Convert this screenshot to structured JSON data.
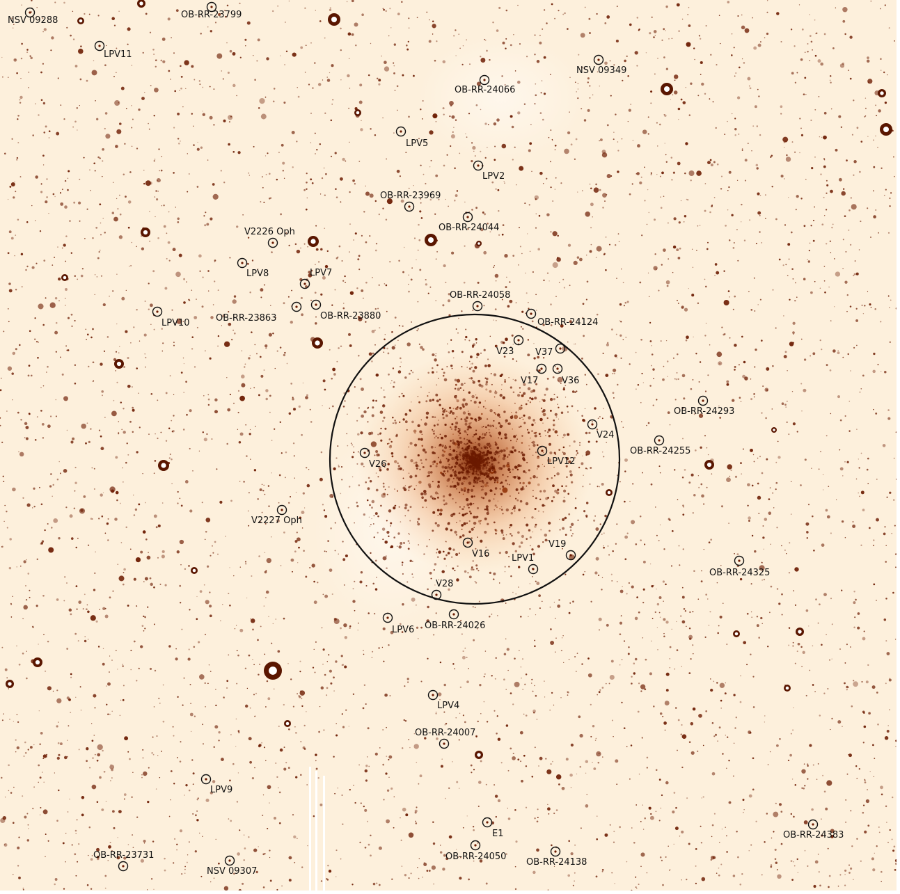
{
  "image": {
    "background_color": "#fdf0dc",
    "star_color": "#6b1a00",
    "marker_color": "#111111"
  },
  "cluster_circle": {
    "data_name": "cluster-boundary-circle"
  },
  "objects": [
    {
      "label": "NSV 09288",
      "name": "nsv-09288"
    },
    {
      "label": "OB-RR-23799",
      "name": "ob-rr-23799"
    },
    {
      "label": "LPV11",
      "name": "lpv11"
    },
    {
      "label": "NSV 09349",
      "name": "nsv-09349"
    },
    {
      "label": "OB-RR-24066",
      "name": "ob-rr-24066"
    },
    {
      "label": "LPV5",
      "name": "lpv5"
    },
    {
      "label": "LPV2",
      "name": "lpv2"
    },
    {
      "label": "OB-RR-23969",
      "name": "ob-rr-23969"
    },
    {
      "label": "OB-RR-24044",
      "name": "ob-rr-24044"
    },
    {
      "label": "V2226 Oph",
      "name": "v2226-oph"
    },
    {
      "label": "LPV8",
      "name": "lpv8"
    },
    {
      "label": "LPV7",
      "name": "lpv7"
    },
    {
      "label": "OB-RR-23863",
      "name": "ob-rr-23863"
    },
    {
      "label": "OB-RR-23880",
      "name": "ob-rr-23880"
    },
    {
      "label": "LPV10",
      "name": "lpv10"
    },
    {
      "label": "OB-RR-24058",
      "name": "ob-rr-24058"
    },
    {
      "label": "OB-RR-24124",
      "name": "ob-rr-24124"
    },
    {
      "label": "V23",
      "name": "v23"
    },
    {
      "label": "V37",
      "name": "v37"
    },
    {
      "label": "V17",
      "name": "v17"
    },
    {
      "label": "V36",
      "name": "v36"
    },
    {
      "label": "OB-RR-24293",
      "name": "ob-rr-24293"
    },
    {
      "label": "V24",
      "name": "v24"
    },
    {
      "label": "OB-RR-24255",
      "name": "ob-rr-24255"
    },
    {
      "label": "V26",
      "name": "v26"
    },
    {
      "label": "LPV12",
      "name": "lpv12"
    },
    {
      "label": "V2227 Oph",
      "name": "v2227-oph"
    },
    {
      "label": "V16",
      "name": "v16"
    },
    {
      "label": "LPV1",
      "name": "lpv1"
    },
    {
      "label": "V19",
      "name": "v19"
    },
    {
      "label": "OB-RR-24325",
      "name": "ob-rr-24325"
    },
    {
      "label": "V28",
      "name": "v28"
    },
    {
      "label": "LPV6",
      "name": "lpv6"
    },
    {
      "label": "OB-RR-24026",
      "name": "ob-rr-24026"
    },
    {
      "label": "LPV4",
      "name": "lpv4"
    },
    {
      "label": "OB-RR-24007",
      "name": "ob-rr-24007"
    },
    {
      "label": "LPV9",
      "name": "lpv9"
    },
    {
      "label": "E1",
      "name": "e1"
    },
    {
      "label": "OB-RR-24383",
      "name": "ob-rr-24383"
    },
    {
      "label": "OB-RR-23731",
      "name": "ob-rr-23731"
    },
    {
      "label": "NSV 09307",
      "name": "nsv-09307"
    },
    {
      "label": "OB-RR-24050",
      "name": "ob-rr-24050"
    },
    {
      "label": "OB-RR-24138",
      "name": "ob-rr-24138"
    }
  ]
}
